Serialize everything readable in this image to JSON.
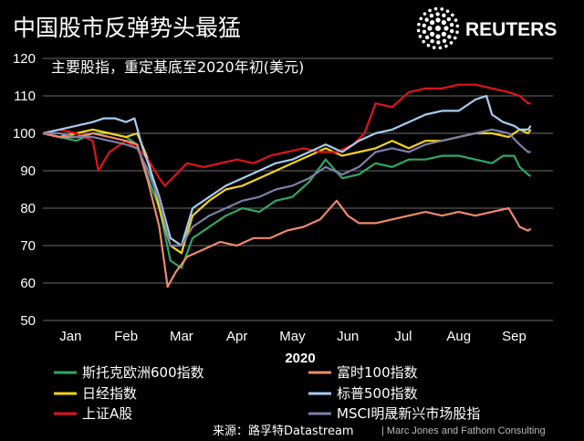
{
  "header": {
    "title": "中国股市反弹势头最猛",
    "subtitle": "主要股指，重定基底至2020年初(美元)",
    "logo_text": "REUTERS"
  },
  "footer": {
    "source": "来源：路孚特Datastream",
    "credit": "| Marc Jones and Fathom Consulting"
  },
  "colors": {
    "background": "#000000",
    "gridline": "#6b6b6b"
  },
  "chart_data": {
    "type": "line",
    "title": "中国股市反弹势头最猛",
    "subtitle": "主要股指，重定基底至2020年初(美元)",
    "xlabel": "2020",
    "ylabel": "",
    "ylim": [
      50,
      120
    ],
    "yticks": [
      50,
      60,
      70,
      80,
      90,
      100,
      110,
      120
    ],
    "xlim": [
      0,
      9.2
    ],
    "x_tick_labels": [
      "Jan",
      "Feb",
      "Mar",
      "Apr",
      "May",
      "Jun",
      "Jul",
      "Aug",
      "Sep"
    ],
    "grid": "horizontal",
    "legend_position": "bottom",
    "series": [
      {
        "name": "斯托克欧洲600指数",
        "color": "#2fa866",
        "x": [
          0,
          0.3,
          0.6,
          0.9,
          1.2,
          1.5,
          1.7,
          1.9,
          2.1,
          2.3,
          2.5,
          2.7,
          3.0,
          3.3,
          3.6,
          3.9,
          4.2,
          4.5,
          4.8,
          5.1,
          5.4,
          5.7,
          6.0,
          6.3,
          6.6,
          6.9,
          7.2,
          7.5,
          7.8,
          8.1,
          8.3,
          8.5,
          8.6,
          8.75,
          8.8
        ],
        "y": [
          100,
          99,
          98,
          100,
          100,
          99,
          97,
          88,
          80,
          66,
          64,
          72,
          75,
          78,
          80,
          79,
          82,
          83,
          87,
          93,
          88,
          89,
          92,
          91,
          93,
          93,
          94,
          94,
          93,
          92,
          94,
          94,
          91,
          89,
          88.5
        ]
      },
      {
        "name": "日经指数",
        "color": "#f5d518",
        "x": [
          0,
          0.3,
          0.6,
          0.9,
          1.2,
          1.5,
          1.7,
          1.9,
          2.1,
          2.3,
          2.5,
          2.7,
          3.0,
          3.3,
          3.6,
          3.9,
          4.2,
          4.5,
          4.8,
          5.1,
          5.4,
          5.7,
          6.0,
          6.3,
          6.6,
          6.9,
          7.2,
          7.5,
          7.8,
          8.1,
          8.4,
          8.6,
          8.75,
          8.8
        ],
        "y": [
          100,
          99,
          100,
          101,
          100,
          99,
          100,
          93,
          80,
          70,
          68,
          78,
          82,
          85,
          86,
          88,
          90,
          92,
          94,
          96,
          94,
          95,
          96,
          98,
          96,
          98,
          98,
          99,
          100,
          100,
          99,
          101,
          100,
          101
        ]
      },
      {
        "name": "上证A股",
        "color": "#e0141b",
        "x": [
          0,
          0.3,
          0.6,
          0.9,
          1.0,
          1.2,
          1.5,
          1.7,
          1.9,
          2.1,
          2.2,
          2.4,
          2.6,
          2.9,
          3.2,
          3.5,
          3.8,
          4.1,
          4.4,
          4.7,
          5.0,
          5.3,
          5.6,
          5.8,
          6.0,
          6.3,
          6.6,
          6.9,
          7.2,
          7.5,
          7.8,
          8.1,
          8.4,
          8.6,
          8.75,
          8.8
        ],
        "y": [
          100,
          101,
          100,
          98,
          90,
          95,
          98,
          96,
          93,
          88,
          86,
          89,
          92,
          91,
          92,
          93,
          92,
          94,
          95,
          96,
          95,
          95,
          97,
          100,
          108,
          107,
          111,
          112,
          112,
          113,
          113,
          112,
          111,
          110,
          108,
          108
        ]
      },
      {
        "name": "富时100指数",
        "color": "#f08a6e",
        "x": [
          0,
          0.3,
          0.6,
          0.9,
          1.2,
          1.5,
          1.7,
          1.9,
          2.1,
          2.25,
          2.4,
          2.6,
          2.9,
          3.2,
          3.5,
          3.8,
          4.1,
          4.4,
          4.7,
          5.0,
          5.3,
          5.5,
          5.7,
          6.0,
          6.3,
          6.6,
          6.9,
          7.2,
          7.5,
          7.8,
          8.1,
          8.4,
          8.6,
          8.75,
          8.8
        ],
        "y": [
          100,
          99,
          99,
          100,
          99,
          98,
          97,
          87,
          75,
          59,
          63,
          67,
          69,
          71,
          70,
          72,
          72,
          74,
          75,
          77,
          82,
          78,
          76,
          76,
          77,
          78,
          79,
          78,
          79,
          78,
          79,
          80,
          75,
          74,
          74.5
        ]
      },
      {
        "name": "标普500指数",
        "color": "#a6cdf2",
        "x": [
          0,
          0.3,
          0.6,
          0.9,
          1.1,
          1.3,
          1.5,
          1.65,
          1.8,
          1.9,
          2.1,
          2.3,
          2.5,
          2.7,
          3.0,
          3.3,
          3.6,
          3.9,
          4.2,
          4.5,
          4.8,
          5.1,
          5.4,
          5.7,
          6.0,
          6.3,
          6.6,
          6.9,
          7.2,
          7.5,
          7.8,
          8.0,
          8.1,
          8.3,
          8.5,
          8.6,
          8.75,
          8.8
        ],
        "y": [
          100,
          101,
          102,
          103,
          104,
          104,
          103,
          104,
          96,
          92,
          83,
          72,
          70,
          80,
          83,
          86,
          88,
          90,
          92,
          93,
          95,
          97,
          95,
          98,
          100,
          101,
          103,
          105,
          106,
          106,
          109,
          110,
          105,
          103,
          102,
          101,
          101,
          102
        ]
      },
      {
        "name": "MSCI明晟新兴市场股指",
        "color": "#7d7fa6",
        "x": [
          0,
          0.3,
          0.6,
          0.9,
          1.2,
          1.5,
          1.7,
          1.9,
          2.1,
          2.3,
          2.5,
          2.7,
          3.0,
          3.3,
          3.6,
          3.9,
          4.2,
          4.5,
          4.8,
          5.1,
          5.4,
          5.7,
          6.0,
          6.3,
          6.6,
          6.9,
          7.2,
          7.5,
          7.8,
          8.1,
          8.4,
          8.6,
          8.75,
          8.8
        ],
        "y": [
          100,
          100,
          99,
          99,
          98,
          97,
          96,
          90,
          82,
          70,
          70,
          75,
          78,
          80,
          82,
          83,
          85,
          86,
          88,
          91,
          89,
          91,
          95,
          96,
          95,
          97,
          98,
          99,
          100,
          101,
          100,
          97,
          95,
          95
        ]
      }
    ]
  }
}
